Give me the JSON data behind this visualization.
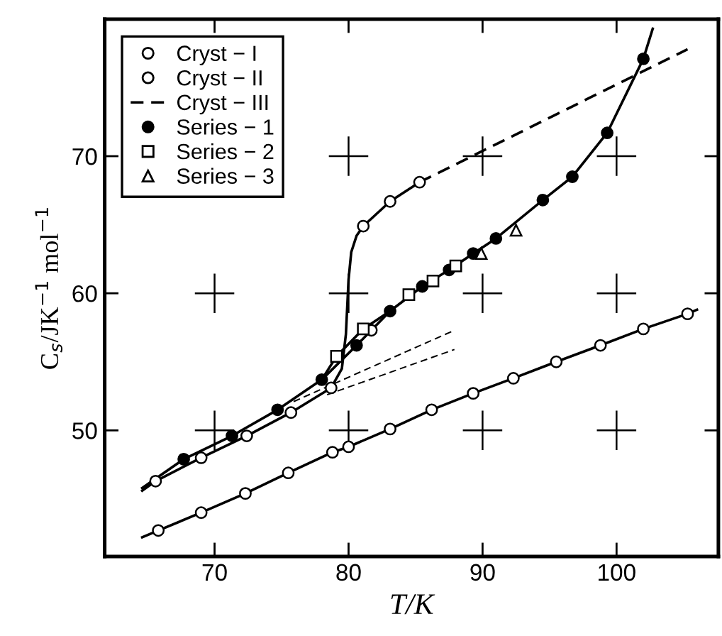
{
  "chart_data": {
    "type": "scatter",
    "xlabel": "T/K",
    "ylabel": "C$_{s}$/JK$^{−1}$ mol$^{−1}$",
    "xlim": [
      61.8,
      107.6
    ],
    "ylim": [
      40.8,
      80
    ],
    "xticks": [
      70,
      80,
      90,
      100
    ],
    "yticks": [
      50,
      60,
      70
    ],
    "legend": "top left",
    "series": [
      {
        "name": "Cryst − I",
        "marker": "circle",
        "color": "#ffffff",
        "x": [
          65.6,
          69.0,
          72.4,
          75.7,
          78.7,
          81.1,
          83.1,
          85.3,
          81.7
        ],
        "values": [
          46.3,
          48.0,
          49.6,
          51.3,
          53.1,
          64.9,
          66.7,
          68.1,
          57.3
        ]
      },
      {
        "name": "Cryst − II",
        "marker": "circle",
        "color": "#ffffff",
        "x": [
          65.8,
          69.0,
          72.3,
          75.5,
          78.8,
          80.0,
          83.1,
          86.2,
          89.3,
          92.3,
          95.5,
          98.8,
          102.0,
          105.3
        ],
        "values": [
          42.7,
          44.0,
          45.4,
          46.9,
          48.4,
          48.8,
          50.1,
          51.5,
          52.7,
          53.8,
          55.0,
          56.2,
          57.4,
          58.5
        ]
      },
      {
        "name": "Cryst − III",
        "type": "line",
        "marker": "none",
        "line_style": "dashed",
        "color": "#000000",
        "x": [
          85.3,
          105.3
        ],
        "values": [
          68.1,
          77.8
        ]
      },
      {
        "name": "Series − 1",
        "marker": "circle",
        "color": "#000000",
        "x": [
          67.7,
          71.3,
          74.7,
          78.0,
          80.6,
          83.1,
          85.5,
          87.5,
          89.3,
          91.0,
          94.5,
          96.7,
          99.3,
          102.0
        ],
        "values": [
          47.9,
          49.6,
          51.5,
          53.7,
          56.2,
          58.7,
          60.5,
          61.7,
          62.9,
          64.0,
          66.8,
          68.5,
          71.7,
          77.1
        ]
      },
      {
        "name": "Series − 2",
        "marker": "square",
        "color": "#ffffff",
        "x": [
          79.1,
          81.1,
          84.5,
          86.3,
          88.0
        ],
        "values": [
          55.4,
          57.4,
          59.9,
          60.9,
          62.0
        ]
      },
      {
        "name": "Series − 3",
        "marker": "triangle",
        "color": "#ffffff",
        "x": [
          89.9,
          92.5
        ],
        "values": [
          62.9,
          64.6
        ]
      },
      {
        "type": "line",
        "marker": "none",
        "line_style": "solid",
        "color": "#000000",
        "x": [
          64.6,
          65.6,
          69.0,
          72.4,
          75.7,
          78.7,
          79.5,
          79.8,
          80.0,
          80.2,
          80.6,
          81.1,
          83.1,
          85.3
        ],
        "values": [
          45.6,
          46.3,
          48.0,
          49.6,
          51.3,
          53.1,
          54.5,
          57.0,
          61.0,
          63.0,
          64.2,
          64.9,
          66.7,
          68.1
        ]
      },
      {
        "type": "line",
        "marker": "none",
        "line_style": "solid",
        "color": "#000000",
        "x": [
          64.6,
          65.8,
          69.0,
          72.3,
          75.5,
          78.8,
          80.0,
          83.1,
          86.2,
          89.3,
          92.3,
          95.5,
          98.8,
          102.0,
          105.3,
          106.0
        ],
        "values": [
          42.2,
          42.7,
          44.0,
          45.4,
          46.9,
          48.4,
          48.8,
          50.1,
          51.5,
          52.7,
          53.8,
          55.0,
          56.2,
          57.4,
          58.5,
          58.8
        ]
      },
      {
        "type": "line",
        "marker": "none",
        "line_style": "solid",
        "color": "#000000",
        "x": [
          64.6,
          67.7,
          71.3,
          74.7,
          78.0,
          80.6,
          81.7,
          83.1,
          85.5,
          87.5,
          89.3,
          91.0,
          94.5,
          96.7,
          99.3,
          102.0,
          102.7
        ],
        "values": [
          45.8,
          47.9,
          49.6,
          51.5,
          53.7,
          56.2,
          57.3,
          58.7,
          60.5,
          61.7,
          62.9,
          64.0,
          66.8,
          68.5,
          71.7,
          77.1,
          79.3
        ]
      },
      {
        "type": "line",
        "marker": "none",
        "line_style": "solid",
        "color": "#000000",
        "x": [
          78.0,
          79.1,
          81.1,
          83.1
        ],
        "values": [
          53.7,
          55.4,
          57.4,
          58.7
        ]
      },
      {
        "type": "line",
        "marker": "none",
        "line_style": "dashed",
        "color": "#000000",
        "x": [
          75.9,
          87.9
        ],
        "values": [
          52.1,
          57.3
        ]
      },
      {
        "type": "line",
        "marker": "none",
        "line_style": "dashed",
        "color": "#000000",
        "x": [
          78.4,
          87.9
        ],
        "values": [
          52.6,
          55.9
        ]
      }
    ]
  }
}
